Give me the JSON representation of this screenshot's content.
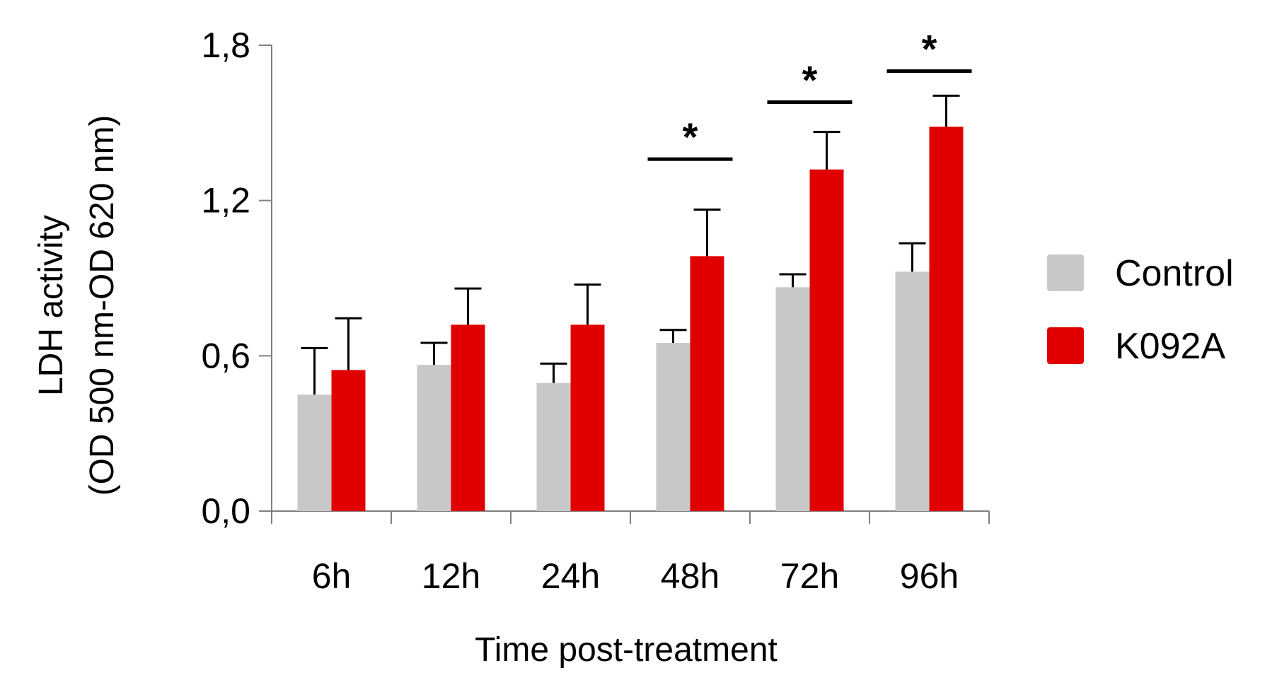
{
  "chart_data": {
    "type": "bar",
    "title": "",
    "xlabel": "Time post-treatment",
    "ylabel_line1": "LDH activity",
    "ylabel_line2": "(OD 500 nm-OD 620 nm)",
    "ylim": [
      0,
      1.8
    ],
    "yticks": [
      0.0,
      0.6,
      1.2,
      1.8
    ],
    "ytick_labels": [
      "0,0",
      "0,6",
      "1,2",
      "1,8"
    ],
    "categories": [
      "6h",
      "12h",
      "24h",
      "48h",
      "72h",
      "96h"
    ],
    "series": [
      {
        "name": "Control",
        "color": "#c8c8c8",
        "values": [
          0.45,
          0.565,
          0.495,
          0.65,
          0.865,
          0.925
        ],
        "errors": [
          0.18,
          0.085,
          0.075,
          0.05,
          0.05,
          0.11
        ]
      },
      {
        "name": "K092A",
        "color": "#e00000",
        "values": [
          0.545,
          0.72,
          0.72,
          0.985,
          1.32,
          1.485
        ],
        "errors": [
          0.2,
          0.14,
          0.155,
          0.18,
          0.145,
          0.12
        ]
      }
    ],
    "significance": [
      {
        "category": "48h",
        "label": "*",
        "level": 1.36
      },
      {
        "category": "72h",
        "label": "*",
        "level": 1.58
      },
      {
        "category": "96h",
        "label": "*",
        "level": 1.7
      }
    ],
    "legend_position": "right"
  }
}
